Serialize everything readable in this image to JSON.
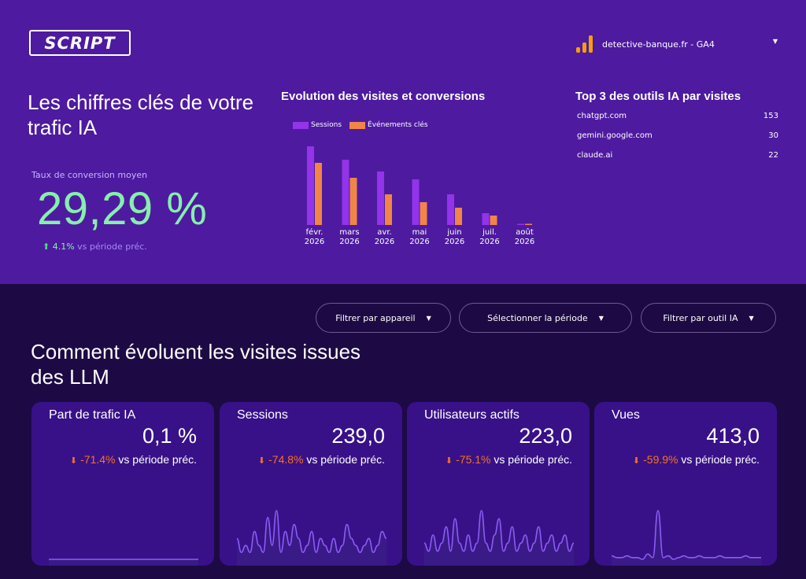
{
  "brand": {
    "logo_text": "SCRIPT"
  },
  "property": {
    "name": "detective-banque.fr  - GA4",
    "icon": "analytics-bars-icon"
  },
  "hero": {
    "title": "Les chiffres clés de votre trafic IA",
    "conversion_label": "Taux de conversion moyen",
    "conversion_value": "29,29 %",
    "delta_pct": "4.1%",
    "delta_text": " vs période préc."
  },
  "evolution": {
    "title": "Evolution des visites et conversions",
    "legend": [
      "Sessions",
      "Événements clés"
    ],
    "colors": {
      "sessions": "#9333ea",
      "events": "#f08547"
    }
  },
  "top3": {
    "title": "Top 3 des outils IA par visites",
    "rows": [
      {
        "name": "chatgpt.com",
        "value": "153"
      },
      {
        "name": "gemini.google.com",
        "value": "30"
      },
      {
        "name": "claude.ai",
        "value": "22"
      }
    ]
  },
  "filters": {
    "device": "Filtrer par appareil",
    "period": "Sélectionner la période",
    "tool": "Filtrer par outil IA"
  },
  "section": {
    "title": "Comment évoluent les visites issues des LLM"
  },
  "cards": [
    {
      "label": "Part de trafic IA",
      "value": "0,1 %",
      "delta": "-71.4%",
      "suffix": " vs période préc.",
      "series": [
        0,
        0,
        0,
        0,
        0,
        0,
        0,
        0,
        0,
        0,
        0,
        0,
        0,
        0,
        0,
        0,
        0,
        0,
        0,
        0
      ]
    },
    {
      "label": "Sessions",
      "value": "239,0",
      "delta": "-74.8%",
      "suffix": " vs période préc.",
      "series": [
        3,
        1,
        2,
        1,
        4,
        2,
        1,
        6,
        2,
        7,
        1,
        4,
        2,
        5,
        3,
        1,
        2,
        4,
        1,
        3,
        2,
        1,
        3,
        1,
        2,
        5,
        3,
        2,
        1,
        2,
        3,
        1,
        2,
        4,
        3
      ]
    },
    {
      "label": "Utilisateurs actifs",
      "value": "223,0",
      "delta": "-75.1%",
      "suffix": " vs période préc.",
      "series": [
        2,
        1,
        3,
        1,
        2,
        4,
        1,
        5,
        2,
        1,
        3,
        1,
        2,
        6,
        2,
        1,
        3,
        5,
        1,
        2,
        4,
        1,
        2,
        3,
        1,
        2,
        4,
        1,
        2,
        3,
        1,
        2,
        3,
        1,
        2
      ]
    },
    {
      "label": "Vues",
      "value": "413,0",
      "delta": "-59.9%",
      "suffix": " vs période préc.",
      "series": [
        2,
        1,
        1,
        2,
        1,
        1,
        0,
        3,
        1,
        28,
        1,
        2,
        0,
        1,
        2,
        1,
        1,
        2,
        1,
        1,
        1,
        2,
        1,
        1,
        1,
        1,
        2,
        1,
        1,
        1
      ]
    }
  ],
  "chart_data": {
    "type": "bar",
    "title": "Evolution des visites et conversions",
    "categories": [
      "févr. 2026",
      "mars 2026",
      "avr. 2026",
      "mai 2026",
      "juin 2026",
      "juil. 2026",
      "août 2026"
    ],
    "series": [
      {
        "name": "Sessions",
        "values": [
          100,
          83,
          68,
          58,
          39,
          15,
          1
        ]
      },
      {
        "name": "Événements clés",
        "values": [
          79,
          60,
          39,
          29,
          22,
          12,
          1
        ]
      }
    ],
    "ylim": [
      0,
      100
    ],
    "grid": false,
    "legend": "top-left"
  }
}
